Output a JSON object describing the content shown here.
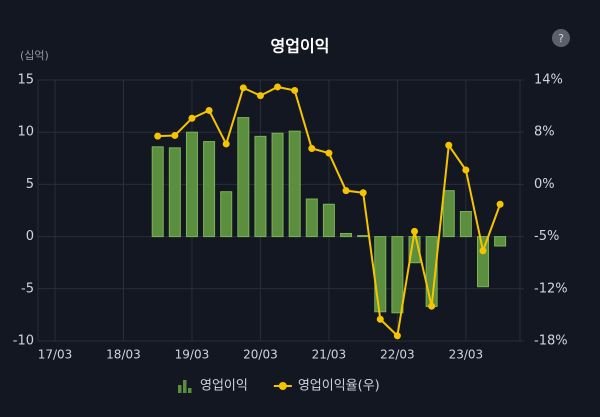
{
  "chart_data": {
    "type": "combo",
    "title": "영업이익",
    "y_label": "(십억)",
    "categories": [
      "17/03",
      null,
      null,
      null,
      "18/03",
      null,
      null,
      null,
      "19/03",
      null,
      null,
      null,
      "20/03",
      null,
      null,
      null,
      "21/03",
      null,
      null,
      null,
      "22/03",
      null,
      null,
      null,
      "23/03",
      null,
      null,
      null
    ],
    "series": [
      {
        "name": "영업이익",
        "type": "bar",
        "color": "#5b8e3e",
        "values": [
          null,
          null,
          null,
          null,
          null,
          null,
          8.6,
          8.5,
          10.0,
          9.1,
          4.3,
          11.4,
          9.6,
          9.9,
          10.1,
          3.6,
          3.1,
          0.3,
          0.1,
          -7.2,
          -7.3,
          -2.5,
          -6.7,
          4.4,
          2.4,
          -4.8,
          -0.9,
          null
        ]
      },
      {
        "name": "영업이익율(우)",
        "type": "line",
        "axis": "y2",
        "color": "#f5c400",
        "values": [
          null,
          null,
          null,
          null,
          null,
          null,
          7.4,
          7.5,
          9.6,
          10.5,
          6.2,
          13.1,
          12.2,
          13.2,
          12.8,
          5.5,
          4.8,
          -0.6,
          -0.8,
          -15.5,
          -17.4,
          -4.5,
          -14.0,
          6.0,
          2.2,
          -6.9,
          -1.9,
          null
        ]
      }
    ],
    "ylim": [
      -10,
      15
    ],
    "yticks": [
      -10,
      -5,
      0,
      5,
      10,
      15
    ],
    "y2lim": [
      -18,
      14
    ],
    "y2ticks": [
      {
        "value": -18,
        "label": "-18%"
      },
      {
        "value": -12,
        "label": "-12%"
      },
      {
        "value": -5,
        "label": "-5%"
      },
      {
        "value": 0,
        "label": "0%"
      },
      {
        "value": 8,
        "label": "8%"
      },
      {
        "value": 14,
        "label": "14%"
      }
    ],
    "grid": true
  }
}
